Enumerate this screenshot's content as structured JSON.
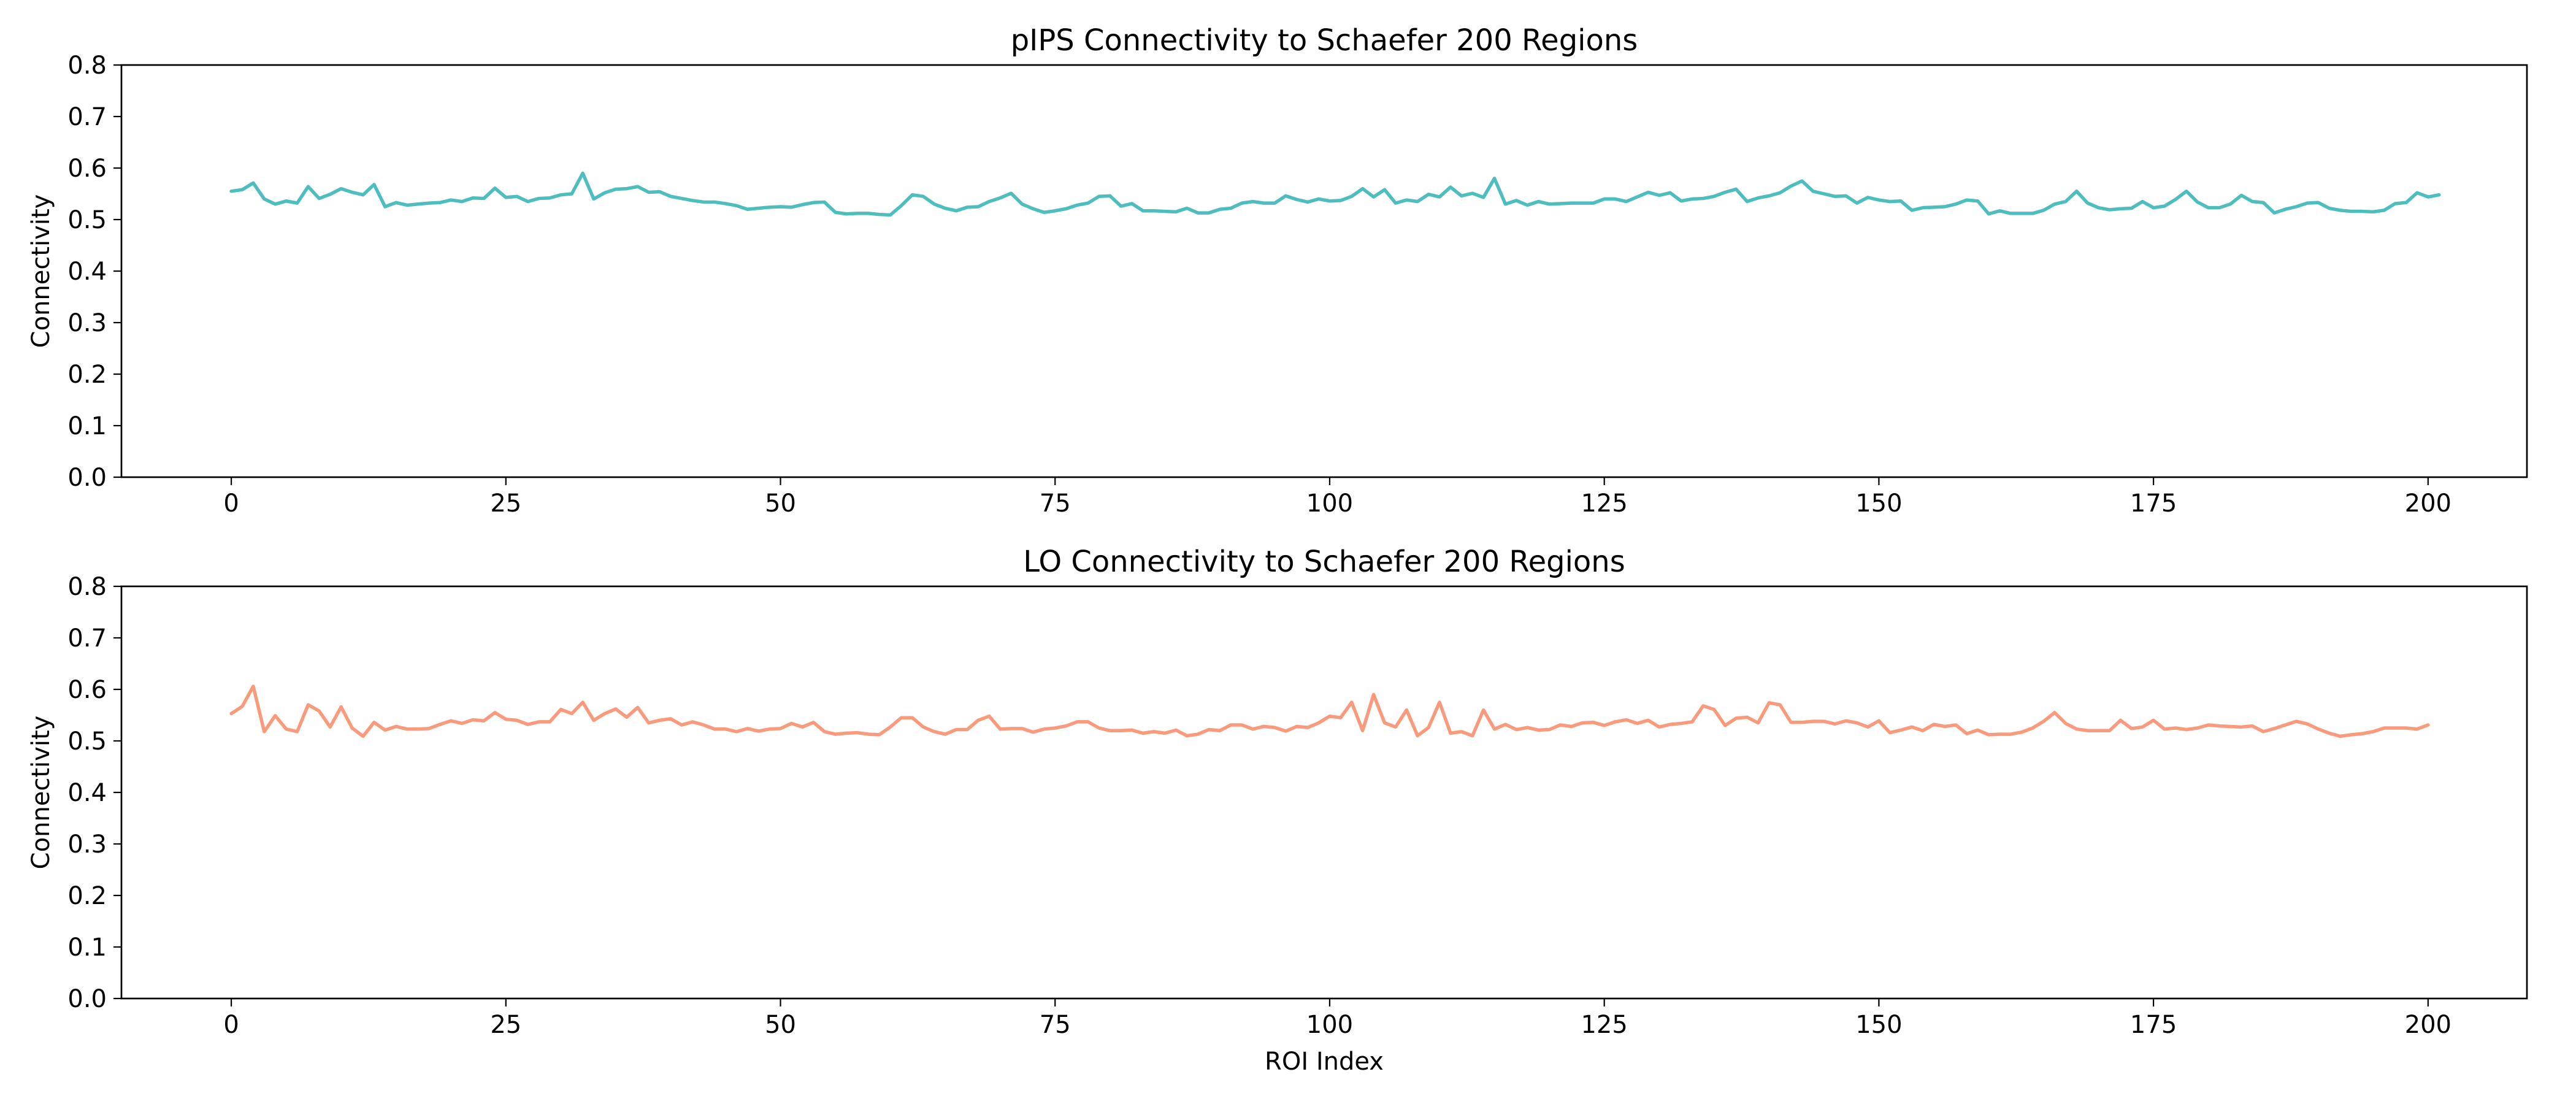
{
  "chart_data": [
    {
      "type": "line",
      "title": "pIPS Connectivity to Schaefer 200 Regions",
      "xlabel": "",
      "ylabel": "Connectivity",
      "xlim": [
        -10,
        209
      ],
      "ylim": [
        0.0,
        0.8
      ],
      "xticks": [
        "0",
        "25",
        "50",
        "75",
        "100",
        "125",
        "150",
        "175",
        "200"
      ],
      "yticks": [
        "0.0",
        "0.1",
        "0.2",
        "0.3",
        "0.4",
        "0.5",
        "0.6",
        "0.7",
        "0.8"
      ],
      "grid": false,
      "color": "#4dbdbd",
      "y": [
        0.555,
        0.558,
        0.571,
        0.54,
        0.53,
        0.536,
        0.532,
        0.564,
        0.541,
        0.549,
        0.56,
        0.553,
        0.548,
        0.568,
        0.525,
        0.533,
        0.528,
        0.53,
        0.532,
        0.533,
        0.538,
        0.535,
        0.542,
        0.541,
        0.561,
        0.543,
        0.545,
        0.535,
        0.541,
        0.542,
        0.548,
        0.55,
        0.59,
        0.54,
        0.552,
        0.559,
        0.56,
        0.564,
        0.553,
        0.554,
        0.545,
        0.541,
        0.537,
        0.534,
        0.534,
        0.531,
        0.527,
        0.52,
        0.522,
        0.524,
        0.525,
        0.524,
        0.529,
        0.533,
        0.534,
        0.514,
        0.511,
        0.512,
        0.512,
        0.51,
        0.509,
        0.527,
        0.548,
        0.545,
        0.53,
        0.522,
        0.517,
        0.524,
        0.525,
        0.535,
        0.542,
        0.551,
        0.53,
        0.521,
        0.514,
        0.517,
        0.521,
        0.528,
        0.532,
        0.545,
        0.546,
        0.526,
        0.531,
        0.517,
        0.517,
        0.516,
        0.515,
        0.522,
        0.513,
        0.513,
        0.52,
        0.522,
        0.532,
        0.535,
        0.532,
        0.532,
        0.546,
        0.539,
        0.534,
        0.54,
        0.536,
        0.537,
        0.545,
        0.56,
        0.544,
        0.558,
        0.532,
        0.538,
        0.535,
        0.549,
        0.544,
        0.563,
        0.546,
        0.551,
        0.543,
        0.58,
        0.53,
        0.537,
        0.528,
        0.535,
        0.53,
        0.531,
        0.532,
        0.532,
        0.532,
        0.54,
        0.54,
        0.535,
        0.544,
        0.553,
        0.547,
        0.552,
        0.536,
        0.54,
        0.541,
        0.545,
        0.553,
        0.559,
        0.535,
        0.542,
        0.546,
        0.552,
        0.565,
        0.575,
        0.555,
        0.55,
        0.545,
        0.546,
        0.532,
        0.543,
        0.538,
        0.535,
        0.536,
        0.518,
        0.523,
        0.524,
        0.525,
        0.53,
        0.538,
        0.536,
        0.511,
        0.517,
        0.512,
        0.512,
        0.512,
        0.518,
        0.53,
        0.535,
        0.555,
        0.532,
        0.523,
        0.519,
        0.521,
        0.522,
        0.535,
        0.523,
        0.526,
        0.539,
        0.555,
        0.534,
        0.523,
        0.523,
        0.53,
        0.547,
        0.535,
        0.533,
        0.513,
        0.52,
        0.525,
        0.532,
        0.533,
        0.522,
        0.518,
        0.516,
        0.516,
        0.515,
        0.518,
        0.531,
        0.533,
        0.552,
        0.544,
        0.548
      ]
    },
    {
      "type": "line",
      "title": "LO Connectivity to Schaefer 200 Regions",
      "xlabel": "ROI Index",
      "ylabel": "Connectivity",
      "xlim": [
        -10,
        209
      ],
      "ylim": [
        0.0,
        0.8
      ],
      "xticks": [
        "0",
        "25",
        "50",
        "75",
        "100",
        "125",
        "150",
        "175",
        "200"
      ],
      "yticks": [
        "0.0",
        "0.1",
        "0.2",
        "0.3",
        "0.4",
        "0.5",
        "0.6",
        "0.7",
        "0.8"
      ],
      "grid": false,
      "color": "#f99a7c",
      "y": [
        0.553,
        0.567,
        0.606,
        0.518,
        0.549,
        0.523,
        0.518,
        0.57,
        0.558,
        0.527,
        0.566,
        0.525,
        0.509,
        0.536,
        0.521,
        0.528,
        0.523,
        0.523,
        0.524,
        0.532,
        0.539,
        0.534,
        0.541,
        0.539,
        0.555,
        0.542,
        0.54,
        0.532,
        0.537,
        0.537,
        0.561,
        0.553,
        0.575,
        0.54,
        0.553,
        0.562,
        0.546,
        0.565,
        0.535,
        0.54,
        0.543,
        0.531,
        0.537,
        0.531,
        0.523,
        0.523,
        0.518,
        0.524,
        0.519,
        0.523,
        0.524,
        0.534,
        0.527,
        0.536,
        0.518,
        0.513,
        0.515,
        0.516,
        0.513,
        0.512,
        0.527,
        0.545,
        0.545,
        0.527,
        0.518,
        0.513,
        0.522,
        0.522,
        0.54,
        0.548,
        0.523,
        0.524,
        0.524,
        0.517,
        0.523,
        0.525,
        0.529,
        0.537,
        0.537,
        0.525,
        0.52,
        0.52,
        0.521,
        0.515,
        0.518,
        0.515,
        0.521,
        0.51,
        0.513,
        0.522,
        0.52,
        0.531,
        0.531,
        0.523,
        0.528,
        0.526,
        0.519,
        0.528,
        0.526,
        0.535,
        0.548,
        0.545,
        0.575,
        0.52,
        0.59,
        0.535,
        0.527,
        0.56,
        0.51,
        0.526,
        0.575,
        0.515,
        0.518,
        0.51,
        0.56,
        0.523,
        0.532,
        0.522,
        0.526,
        0.521,
        0.522,
        0.531,
        0.528,
        0.535,
        0.536,
        0.53,
        0.537,
        0.541,
        0.534,
        0.54,
        0.527,
        0.532,
        0.534,
        0.537,
        0.568,
        0.561,
        0.53,
        0.544,
        0.546,
        0.535,
        0.574,
        0.57,
        0.536,
        0.536,
        0.538,
        0.538,
        0.533,
        0.539,
        0.535,
        0.527,
        0.539,
        0.516,
        0.521,
        0.527,
        0.52,
        0.532,
        0.528,
        0.531,
        0.514,
        0.521,
        0.512,
        0.513,
        0.513,
        0.517,
        0.525,
        0.538,
        0.555,
        0.534,
        0.523,
        0.52,
        0.52,
        0.52,
        0.54,
        0.524,
        0.527,
        0.54,
        0.523,
        0.525,
        0.522,
        0.525,
        0.531,
        0.529,
        0.528,
        0.527,
        0.529,
        0.518,
        0.524,
        0.531,
        0.538,
        0.533,
        0.523,
        0.515,
        0.509,
        0.512,
        0.514,
        0.518,
        0.525,
        0.525,
        0.525,
        0.523,
        0.531
      ]
    }
  ]
}
